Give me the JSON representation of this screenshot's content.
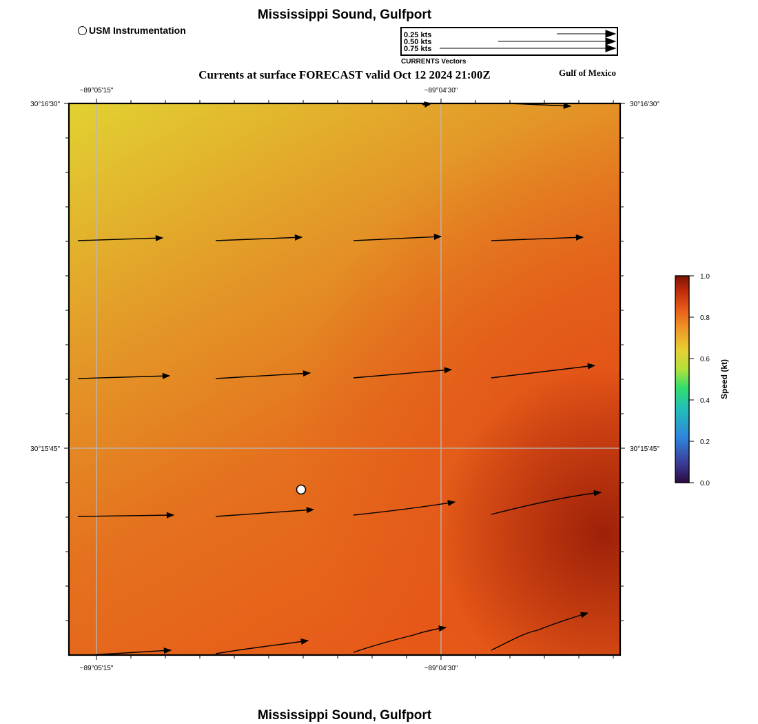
{
  "header": {
    "title": "Mississippi Sound, Gulfport",
    "subtitle": "Currents at surface FORECAST valid Oct 12 2024 21:00Z",
    "region_label": "Gulf of Mexico",
    "footer_title": "Mississippi Sound, Gulfport"
  },
  "station_legend": {
    "label": "USM Instrumentation"
  },
  "vector_legend": {
    "caption": "CURRENTS Vectors",
    "entries": [
      {
        "label": "0.25 kts",
        "speed_kts": 0.25
      },
      {
        "label": "0.50 kts",
        "speed_kts": 0.5
      },
      {
        "label": "0.75 kts",
        "speed_kts": 0.75
      }
    ]
  },
  "map": {
    "lon_ticks": [
      "−89°05'15\"",
      "−89°04'30\""
    ],
    "lat_ticks": [
      "30°16'30\"",
      "30°15'45\""
    ],
    "station": {
      "name": "USM Instrumentation"
    }
  },
  "colorbar": {
    "label": "Speed (kt)",
    "min": 0.0,
    "max": 1.0,
    "ticks": [
      "0.0",
      "0.2",
      "0.4",
      "0.6",
      "0.8",
      "1.0"
    ]
  },
  "colors": {
    "speed_low": "#e0d030",
    "speed_mid": "#e85a18",
    "speed_high": "#9a1e08"
  }
}
